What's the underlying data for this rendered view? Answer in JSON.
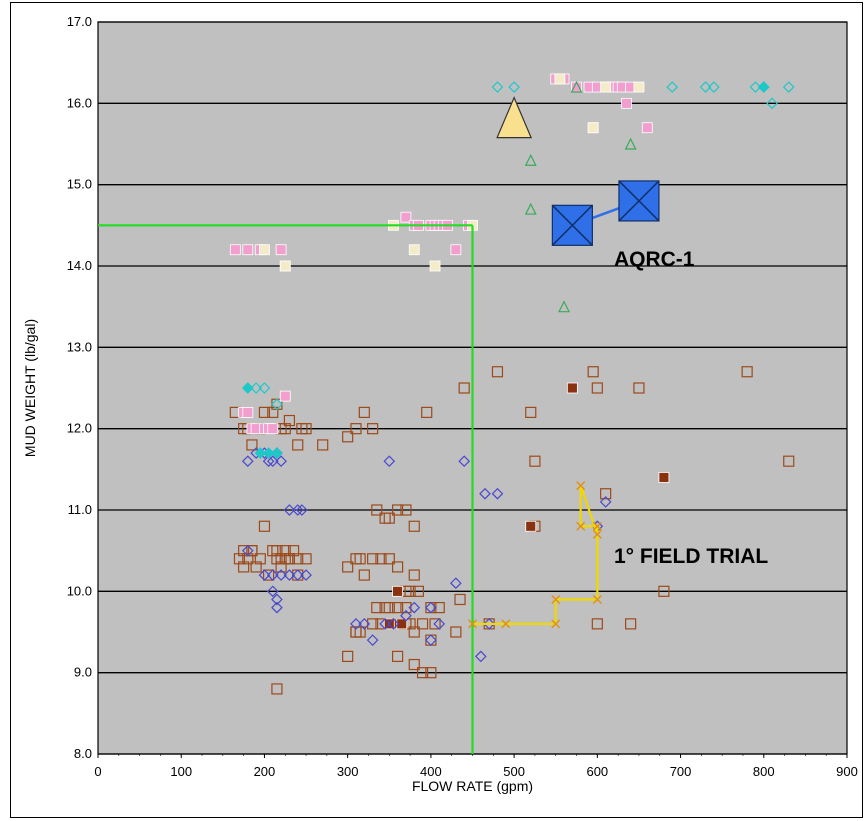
{
  "chart_data": {
    "type": "scatter",
    "title": "",
    "xlabel": "FLOW RATE (gpm)",
    "ylabel": "MUD WEIGHT (lb/gal)",
    "xlim": [
      0,
      900
    ],
    "ylim": [
      8.0,
      17.0
    ],
    "x_ticks": [
      "0",
      "100",
      "200",
      "300",
      "400",
      "500",
      "600",
      "700",
      "800",
      "900"
    ],
    "y_ticks": [
      "8.0",
      "9.0",
      "10.0",
      "11.0",
      "12.0",
      "13.0",
      "14.0",
      "15.0",
      "16.0",
      "17.0"
    ],
    "grid": "horizontal",
    "colors": {
      "plot_bg": "#c0c0c0",
      "grid": "#000000",
      "reference_line": "#22dd22",
      "trial_path": "#f0d800",
      "aqrc_marker": "#2f6fe8",
      "big_triangle": "#f8e08e"
    },
    "series": [
      {
        "marker": "open-square",
        "color": "#9c4a1a",
        "x": [
          165,
          175,
          180,
          185,
          195,
          200,
          210,
          215,
          220,
          225,
          230,
          240,
          245,
          250,
          270,
          310,
          300,
          320,
          330,
          335,
          345,
          350,
          360,
          370,
          380,
          395,
          440,
          480,
          520,
          525,
          525,
          595,
          600,
          610,
          650,
          680,
          780,
          830,
          170,
          175,
          180,
          185,
          190,
          195,
          200,
          205,
          215,
          220,
          225,
          230,
          235,
          240,
          250,
          175,
          185,
          210,
          215,
          220,
          225,
          230,
          240,
          300,
          310,
          315,
          320,
          330,
          340,
          350,
          360,
          370,
          375,
          380,
          385,
          330,
          335,
          345,
          355,
          360,
          370,
          400,
          405,
          310,
          315,
          340,
          350,
          360,
          370,
          375,
          380,
          390,
          430,
          435,
          400,
          410,
          470,
          380,
          390,
          400,
          360,
          300,
          310,
          215,
          640,
          600
        ],
        "y": [
          12.2,
          12.0,
          12.0,
          11.8,
          12.0,
          12.2,
          12.2,
          12.3,
          12.0,
          12.0,
          12.1,
          11.8,
          12.0,
          12.0,
          11.8,
          12.0,
          11.9,
          12.2,
          12.0,
          11.0,
          10.9,
          10.9,
          11.0,
          11.0,
          10.8,
          12.2,
          12.5,
          12.7,
          12.2,
          11.6,
          10.8,
          12.7,
          12.5,
          11.2,
          12.5,
          10.0,
          12.7,
          11.6,
          10.4,
          10.5,
          10.4,
          10.5,
          10.3,
          10.4,
          10.8,
          10.2,
          10.5,
          10.4,
          10.5,
          10.4,
          10.5,
          10.4,
          10.4,
          10.3,
          10.5,
          10.5,
          10.4,
          10.3,
          10.4,
          10.4,
          10.2,
          10.3,
          10.4,
          10.4,
          10.2,
          10.4,
          10.4,
          10.4,
          10.3,
          10.0,
          10.0,
          10.2,
          10.0,
          9.6,
          9.8,
          9.8,
          9.6,
          9.8,
          9.6,
          9.8,
          9.6,
          9.5,
          9.5,
          9.6,
          9.8,
          9.6,
          9.8,
          9.6,
          9.5,
          9.6,
          9.5,
          9.9,
          9.4,
          9.8,
          9.6,
          9.1,
          9.0,
          9.0,
          9.2,
          9.2,
          9.5,
          8.8,
          9.6,
          9.6
        ]
      },
      {
        "marker": "filled-square",
        "color": "#8a3210",
        "x": [
          360,
          355,
          365,
          350,
          570,
          520,
          680
        ],
        "y": [
          10.0,
          9.6,
          9.6,
          9.6,
          12.5,
          10.8,
          11.4
        ]
      },
      {
        "marker": "open-diamond",
        "color": "#4848d0",
        "x": [
          180,
          190,
          200,
          205,
          210,
          215,
          220,
          210,
          215,
          230,
          240,
          245,
          230,
          240,
          250,
          350,
          440,
          465,
          480,
          460,
          610,
          600,
          180,
          200,
          210,
          220,
          215,
          310,
          320,
          330,
          345,
          355,
          370,
          380,
          400,
          410,
          430,
          400,
          470
        ],
        "y": [
          11.6,
          11.7,
          11.7,
          11.6,
          11.6,
          11.7,
          11.6,
          10.0,
          9.8,
          11.0,
          11.0,
          11.0,
          10.2,
          10.2,
          10.2,
          11.6,
          11.6,
          11.2,
          11.2,
          9.2,
          11.1,
          10.8,
          10.5,
          10.2,
          10.2,
          10.2,
          9.9,
          9.6,
          9.6,
          9.4,
          9.6,
          9.6,
          9.7,
          9.8,
          9.8,
          9.6,
          10.1,
          9.4,
          9.6
        ]
      },
      {
        "marker": "open-diamond",
        "color": "#1ec8c8",
        "x": [
          190,
          200,
          215,
          480,
          500,
          620,
          690,
          730,
          740,
          790,
          800,
          810,
          830
        ],
        "y": [
          12.5,
          12.5,
          12.3,
          16.2,
          16.2,
          16.2,
          16.2,
          16.2,
          16.2,
          16.2,
          16.2,
          16.0,
          16.2
        ]
      },
      {
        "marker": "filled-diamond",
        "color": "#1ec8c8",
        "x": [
          180,
          195,
          205,
          215,
          800
        ],
        "y": [
          12.5,
          11.7,
          11.7,
          11.7,
          16.2
        ]
      },
      {
        "marker": "filled-square",
        "color": "#f29fcf",
        "x": [
          165,
          180,
          195,
          220,
          225,
          175,
          180,
          185,
          190,
          200,
          205,
          210,
          225,
          370,
          380,
          385,
          400,
          405,
          410,
          415,
          420,
          430,
          445,
          550,
          560,
          575,
          590,
          600,
          610,
          615,
          620,
          625,
          630,
          635,
          640,
          660,
          595
        ],
        "y": [
          14.2,
          14.2,
          14.2,
          14.2,
          14.0,
          12.2,
          12.2,
          12.0,
          12.0,
          12.0,
          12.0,
          12.0,
          12.4,
          14.6,
          14.5,
          14.5,
          14.5,
          14.5,
          14.5,
          14.5,
          14.5,
          14.2,
          14.5,
          16.3,
          16.3,
          16.2,
          16.2,
          16.2,
          16.2,
          16.2,
          16.2,
          16.2,
          16.2,
          16.0,
          16.2,
          15.7,
          15.7
        ]
      },
      {
        "marker": "filled-square",
        "color": "#f4ecc8",
        "x": [
          200,
          225,
          355,
          380,
          405,
          450,
          555,
          610,
          650,
          595
        ],
        "y": [
          14.2,
          14.0,
          14.5,
          14.2,
          14.0,
          14.5,
          16.3,
          16.2,
          16.2,
          15.7
        ]
      },
      {
        "marker": "open-triangle",
        "color": "#3aaa5a",
        "x": [
          520,
          520,
          560,
          640,
          575
        ],
        "y": [
          15.3,
          14.7,
          13.5,
          15.5,
          16.2
        ]
      }
    ],
    "reference_lines": {
      "x": 450,
      "y": 14.5
    },
    "trial_path": {
      "x": [
        450,
        490,
        550,
        550,
        600,
        600,
        580,
        580,
        600
      ],
      "y": [
        9.6,
        9.6,
        9.6,
        9.9,
        9.9,
        10.8,
        10.8,
        11.3,
        10.7
      ]
    },
    "big_triangle": {
      "x": 500,
      "y": 15.8
    },
    "aqrc_points": {
      "x": [
        570,
        650
      ],
      "y": [
        14.5,
        14.8
      ]
    },
    "annotations": [
      {
        "text": "AQRC-1",
        "x": 620,
        "y": 14.0
      },
      {
        "text": "1° FIELD TRIAL",
        "x": 620,
        "y": 10.35
      }
    ]
  }
}
